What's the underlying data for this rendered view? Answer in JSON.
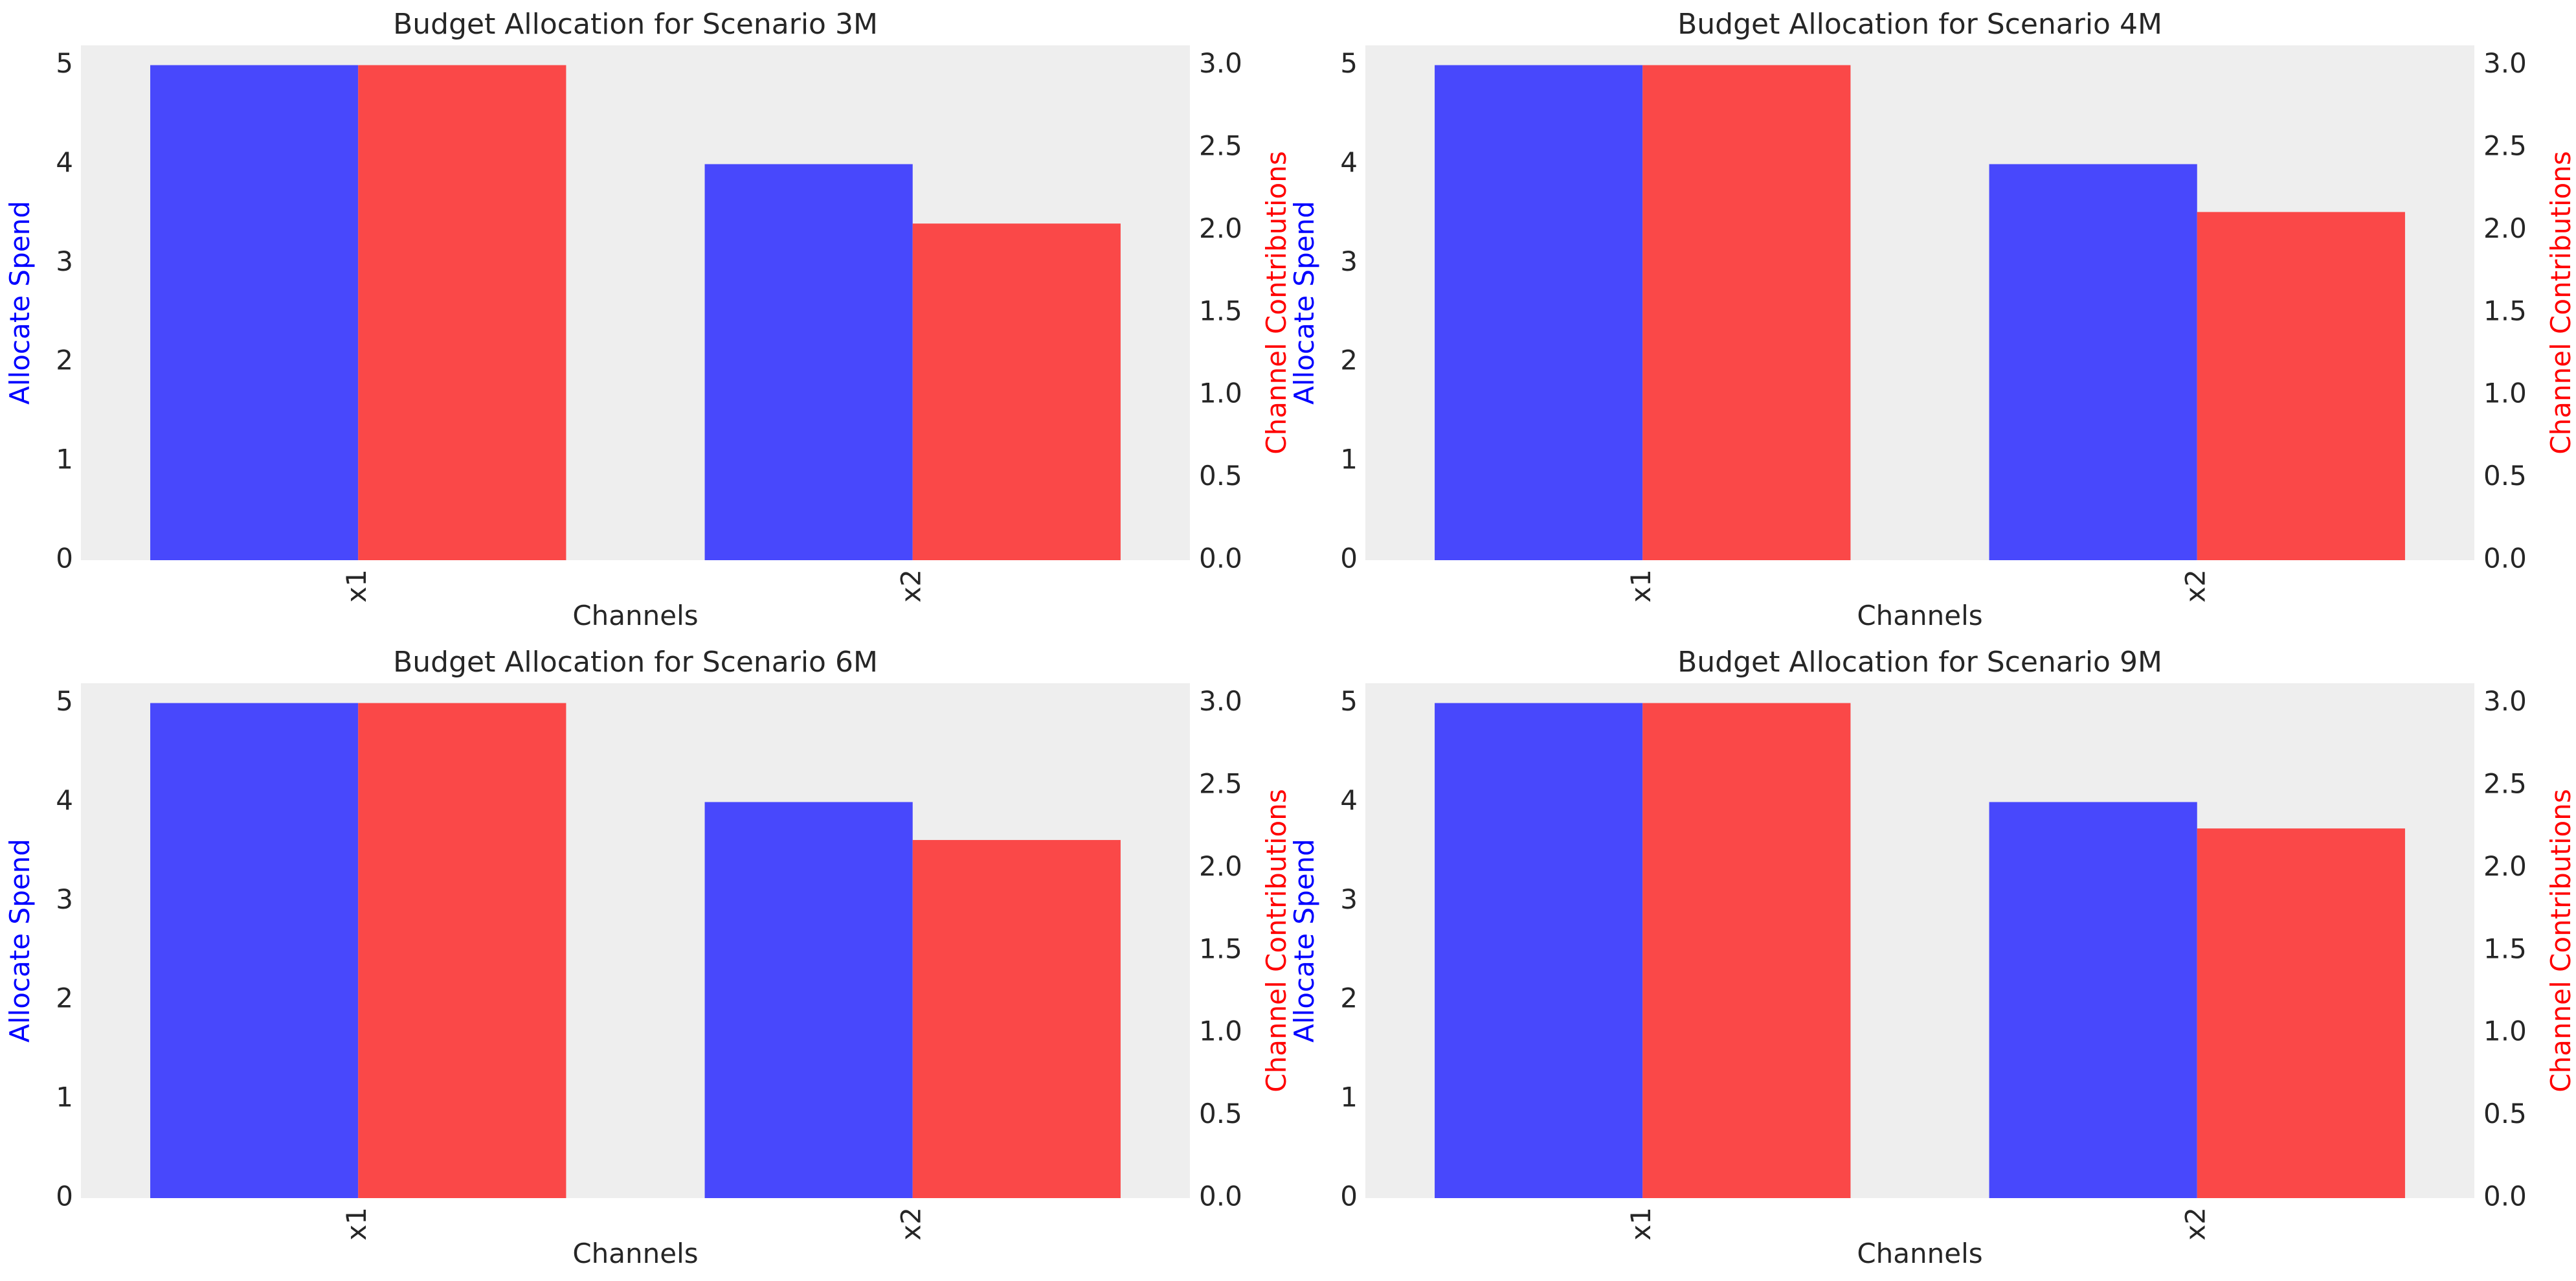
{
  "chart_data": [
    {
      "type": "bar",
      "title": "Budget Allocation for Scenario 3M",
      "xlabel": "Channels",
      "ylabel": "Allocate Spend",
      "y2label": "Channel Contributions",
      "categories": [
        "x1",
        "x2"
      ],
      "series": [
        {
          "axis": "left",
          "color": "#4848fc",
          "values": [
            5.0,
            4.0
          ]
        },
        {
          "axis": "right",
          "color": "#fa4848",
          "values": [
            3.0,
            2.04
          ]
        }
      ],
      "ylim": [
        0,
        5.2
      ],
      "y2lim": [
        0,
        3.12
      ],
      "yticks": [
        "0",
        "1",
        "2",
        "3",
        "4",
        "5"
      ],
      "y2ticks": [
        "0.0",
        "0.5",
        "1.0",
        "1.5",
        "2.0",
        "2.5",
        "3.0"
      ],
      "grid": false
    },
    {
      "type": "bar",
      "title": "Budget Allocation for Scenario 4M",
      "xlabel": "Channels",
      "ylabel": "Allocate Spend",
      "y2label": "Channel Contributions",
      "categories": [
        "x1",
        "x2"
      ],
      "series": [
        {
          "axis": "left",
          "color": "#4848fc",
          "values": [
            5.0,
            4.0
          ]
        },
        {
          "axis": "right",
          "color": "#fa4848",
          "values": [
            3.0,
            2.11
          ]
        }
      ],
      "ylim": [
        0,
        5.2
      ],
      "y2lim": [
        0,
        3.12
      ],
      "yticks": [
        "0",
        "1",
        "2",
        "3",
        "4",
        "5"
      ],
      "y2ticks": [
        "0.0",
        "0.5",
        "1.0",
        "1.5",
        "2.0",
        "2.5",
        "3.0"
      ],
      "grid": false
    },
    {
      "type": "bar",
      "title": "Budget Allocation for Scenario 6M",
      "xlabel": "Channels",
      "ylabel": "Allocate Spend",
      "y2label": "Channel Contributions",
      "categories": [
        "x1",
        "x2"
      ],
      "series": [
        {
          "axis": "left",
          "color": "#4848fc",
          "values": [
            5.0,
            4.0
          ]
        },
        {
          "axis": "right",
          "color": "#fa4848",
          "values": [
            3.0,
            2.17
          ]
        }
      ],
      "ylim": [
        0,
        5.2
      ],
      "y2lim": [
        0,
        3.12
      ],
      "yticks": [
        "0",
        "1",
        "2",
        "3",
        "4",
        "5"
      ],
      "y2ticks": [
        "0.0",
        "0.5",
        "1.0",
        "1.5",
        "2.0",
        "2.5",
        "3.0"
      ],
      "grid": false
    },
    {
      "type": "bar",
      "title": "Budget Allocation for Scenario 9M",
      "xlabel": "Channels",
      "ylabel": "Allocate Spend",
      "y2label": "Channel Contributions",
      "categories": [
        "x1",
        "x2"
      ],
      "series": [
        {
          "axis": "left",
          "color": "#4848fc",
          "values": [
            5.0,
            4.0
          ]
        },
        {
          "axis": "right",
          "color": "#fa4848",
          "values": [
            3.0,
            2.24
          ]
        }
      ],
      "ylim": [
        0,
        5.2
      ],
      "y2lim": [
        0,
        3.12
      ],
      "yticks": [
        "0",
        "1",
        "2",
        "3",
        "4",
        "5"
      ],
      "y2ticks": [
        "0.0",
        "0.5",
        "1.0",
        "1.5",
        "2.0",
        "2.5",
        "3.0"
      ],
      "grid": false
    }
  ],
  "colors": {
    "plot_background": "#eeeeee",
    "left_axis_label": "#0000ff",
    "right_axis_label": "#ff0000",
    "tick_text": "#262626"
  }
}
